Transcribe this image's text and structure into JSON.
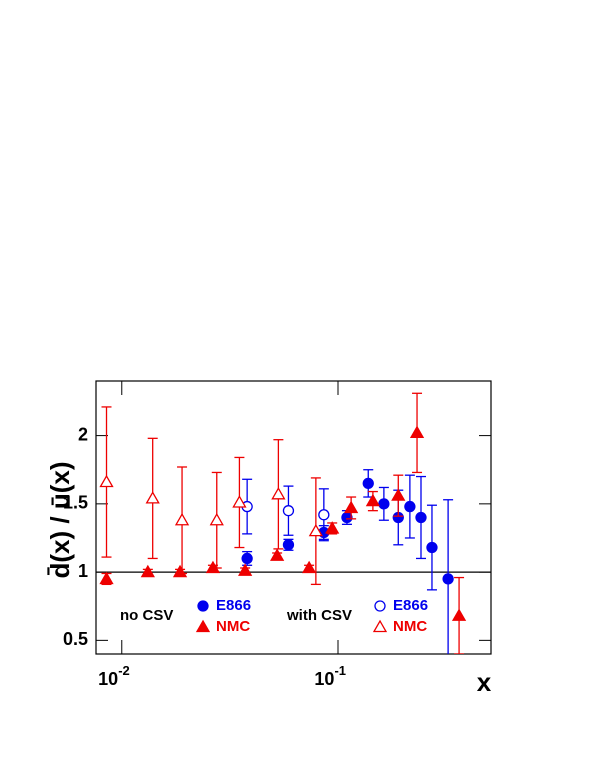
{
  "chart_data": {
    "type": "errorbar-scatter",
    "ylabel": "d̄(x) / ū(x)",
    "xlabel": "x",
    "xscale": "log",
    "xlim": [
      0.0076,
      0.51
    ],
    "ylim": [
      0.4,
      2.4
    ],
    "xticks": [
      {
        "value": 0.01,
        "label": {
          "base": "10",
          "exponent": "-2"
        }
      },
      {
        "value": 0.1,
        "label": {
          "base": "10",
          "exponent": "-1"
        }
      }
    ],
    "yticks": [
      0.5,
      1,
      1.5,
      2
    ],
    "hline": 1,
    "series_groups": [
      {
        "label": "no CSV",
        "series": [
          {
            "name": "E866",
            "color": "#0000ee",
            "marker": "circle",
            "filled": true,
            "x": [
              0.038,
              0.059,
              0.086,
              0.11,
              0.138,
              0.163,
              0.19,
              0.215,
              0.242,
              0.272,
              0.323
            ],
            "values": [
              1.1,
              1.2,
              1.29,
              1.4,
              1.65,
              1.5,
              1.4,
              1.48,
              1.4,
              1.18,
              0.95
            ],
            "errors": [
              0.05,
              0.04,
              0.05,
              0.05,
              0.1,
              0.12,
              0.2,
              0.23,
              0.3,
              0.31,
              0.58
            ]
          },
          {
            "name": "NMC",
            "color": "#ee0000",
            "marker": "triangle",
            "filled": true,
            "x": [
              0.0085,
              0.0132,
              0.0186,
              0.0264,
              0.0372,
              0.0523,
              0.0735,
              0.094,
              0.115,
              0.145,
              0.19,
              0.232,
              0.363
            ],
            "values": [
              0.95,
              1.0,
              1.0,
              1.03,
              1.01,
              1.12,
              1.03,
              1.32,
              1.47,
              1.52,
              1.56,
              2.02,
              0.68
            ],
            "errors": [
              0.04,
              0.02,
              0.02,
              0.02,
              0.02,
              0.02,
              0.02,
              0.04,
              0.08,
              0.07,
              0.15,
              0.29,
              0.28
            ]
          }
        ]
      },
      {
        "label": "with CSV",
        "series": [
          {
            "name": "E866",
            "color": "#0000ee",
            "marker": "circle",
            "filled": false,
            "x": [
              0.038,
              0.059,
              0.086
            ],
            "values": [
              1.48,
              1.45,
              1.42
            ],
            "errors": [
              0.2,
              0.18,
              0.19
            ]
          },
          {
            "name": "NMC",
            "color": "#ee0000",
            "marker": "triangle",
            "filled": false,
            "x": [
              0.0085,
              0.0139,
              0.019,
              0.0275,
              0.035,
              0.053,
              0.079
            ],
            "values": [
              1.66,
              1.54,
              1.38,
              1.38,
              1.51,
              1.57,
              1.3
            ],
            "errors": [
              0.55,
              0.44,
              0.39,
              0.35,
              0.33,
              0.4,
              0.39
            ]
          }
        ]
      }
    ]
  }
}
